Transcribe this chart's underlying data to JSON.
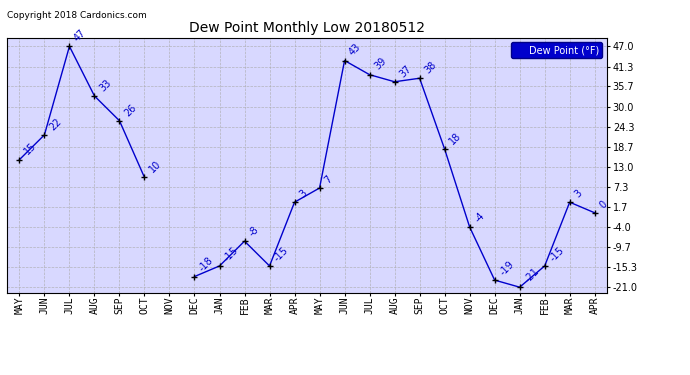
{
  "title": "Dew Point Monthly Low 20180512",
  "copyright": "Copyright 2018 Cardonics.com",
  "legend_label": "Dew Point (°F)",
  "x_labels": [
    "MAY",
    "JUN",
    "JUL",
    "AUG",
    "SEP",
    "OCT",
    "NOV",
    "DEC",
    "JAN",
    "FEB",
    "MAR",
    "APR",
    "MAY",
    "JUN",
    "JUL",
    "AUG",
    "SEP",
    "OCT",
    "NOV",
    "DEC",
    "JAN",
    "FEB",
    "MAR",
    "APR"
  ],
  "y_values": [
    15,
    22,
    47,
    33,
    26,
    10,
    null,
    -18,
    -15,
    -8,
    -15,
    3,
    7,
    43,
    39,
    37,
    38,
    18,
    -4,
    -19,
    -21,
    -15,
    3,
    0
  ],
  "y_labels": [
    "47.0",
    "41.3",
    "35.7",
    "30.0",
    "24.3",
    "18.7",
    "13.0",
    "7.3",
    "1.7",
    "-4.0",
    "-9.7",
    "-15.3",
    "-21.0"
  ],
  "y_ticks": [
    47.0,
    41.3,
    35.7,
    30.0,
    24.3,
    18.7,
    13.0,
    7.3,
    1.7,
    -4.0,
    -9.7,
    -15.3,
    -21.0
  ],
  "ylim": [
    -22.5,
    49.5
  ],
  "line_color": "#0000CC",
  "marker_color": "#000000",
  "plot_bg_color": "#D8D8FF",
  "fig_bg_color": "#FFFFFF",
  "grid_color": "#AAAAAA",
  "title_color": "#000000",
  "label_color": "#0000CC",
  "legend_bg": "#0000CC",
  "legend_text_color": "#FFFFFF",
  "label_fontsize": 7,
  "tick_fontsize": 7,
  "title_fontsize": 10
}
